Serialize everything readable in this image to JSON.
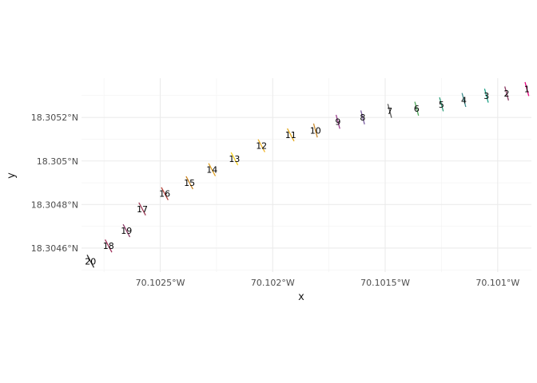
{
  "chart_data": {
    "type": "scatter",
    "xlabel": "x",
    "ylabel": "y",
    "xlim": [
      -70.10285,
      -70.10085
    ],
    "ylim": [
      18.30449,
      18.30538
    ],
    "grid": true,
    "x_ticks": [
      {
        "value": -70.1025,
        "label": "70.1025°W"
      },
      {
        "value": -70.102,
        "label": "70.102°W"
      },
      {
        "value": -70.1015,
        "label": "70.1015°W"
      },
      {
        "value": -70.101,
        "label": "70.101°W"
      }
    ],
    "y_ticks": [
      {
        "value": 18.3046,
        "label": "18.3046°N"
      },
      {
        "value": 18.3048,
        "label": "18.3048°N"
      },
      {
        "value": 18.305,
        "label": "18.305°N"
      },
      {
        "value": 18.3052,
        "label": "18.3052°N"
      }
    ],
    "points": [
      {
        "label": "1",
        "x": -70.10087,
        "y": 18.30533,
        "color": "#e4007c"
      },
      {
        "label": "2",
        "x": -70.10096,
        "y": 18.30531,
        "color": "#8a3b62"
      },
      {
        "label": "3",
        "x": -70.10105,
        "y": 18.3053,
        "color": "#1fa187"
      },
      {
        "label": "4",
        "x": -70.10115,
        "y": 18.30528,
        "color": "#3b8b8b"
      },
      {
        "label": "5",
        "x": -70.10125,
        "y": 18.30526,
        "color": "#2e9e7a"
      },
      {
        "label": "6",
        "x": -70.10136,
        "y": 18.30524,
        "color": "#4ea85a"
      },
      {
        "label": "7",
        "x": -70.10148,
        "y": 18.30523,
        "color": "#5c5c5c"
      },
      {
        "label": "8",
        "x": -70.1016,
        "y": 18.3052,
        "color": "#7b5fa0"
      },
      {
        "label": "9",
        "x": -70.10171,
        "y": 18.30518,
        "color": "#9b3f8f"
      },
      {
        "label": "10",
        "x": -70.10181,
        "y": 18.30514,
        "color": "#c98a2e"
      },
      {
        "label": "11",
        "x": -70.10192,
        "y": 18.30512,
        "color": "#e3a81b"
      },
      {
        "label": "12",
        "x": -70.10205,
        "y": 18.30507,
        "color": "#f0b429"
      },
      {
        "label": "13",
        "x": -70.10217,
        "y": 18.30501,
        "color": "#f7d21f"
      },
      {
        "label": "14",
        "x": -70.10227,
        "y": 18.30496,
        "color": "#e0a020"
      },
      {
        "label": "15",
        "x": -70.10237,
        "y": 18.3049,
        "color": "#c8821e"
      },
      {
        "label": "16",
        "x": -70.10248,
        "y": 18.30485,
        "color": "#b5443c"
      },
      {
        "label": "17",
        "x": -70.10258,
        "y": 18.30478,
        "color": "#9e3a55"
      },
      {
        "label": "18",
        "x": -70.10273,
        "y": 18.30461,
        "color": "#a0305a"
      },
      {
        "label": "19",
        "x": -70.10265,
        "y": 18.30468,
        "color": "#8e3c6a"
      },
      {
        "label": "20",
        "x": -70.10281,
        "y": 18.30454,
        "color": "#2b2b2b"
      }
    ]
  }
}
